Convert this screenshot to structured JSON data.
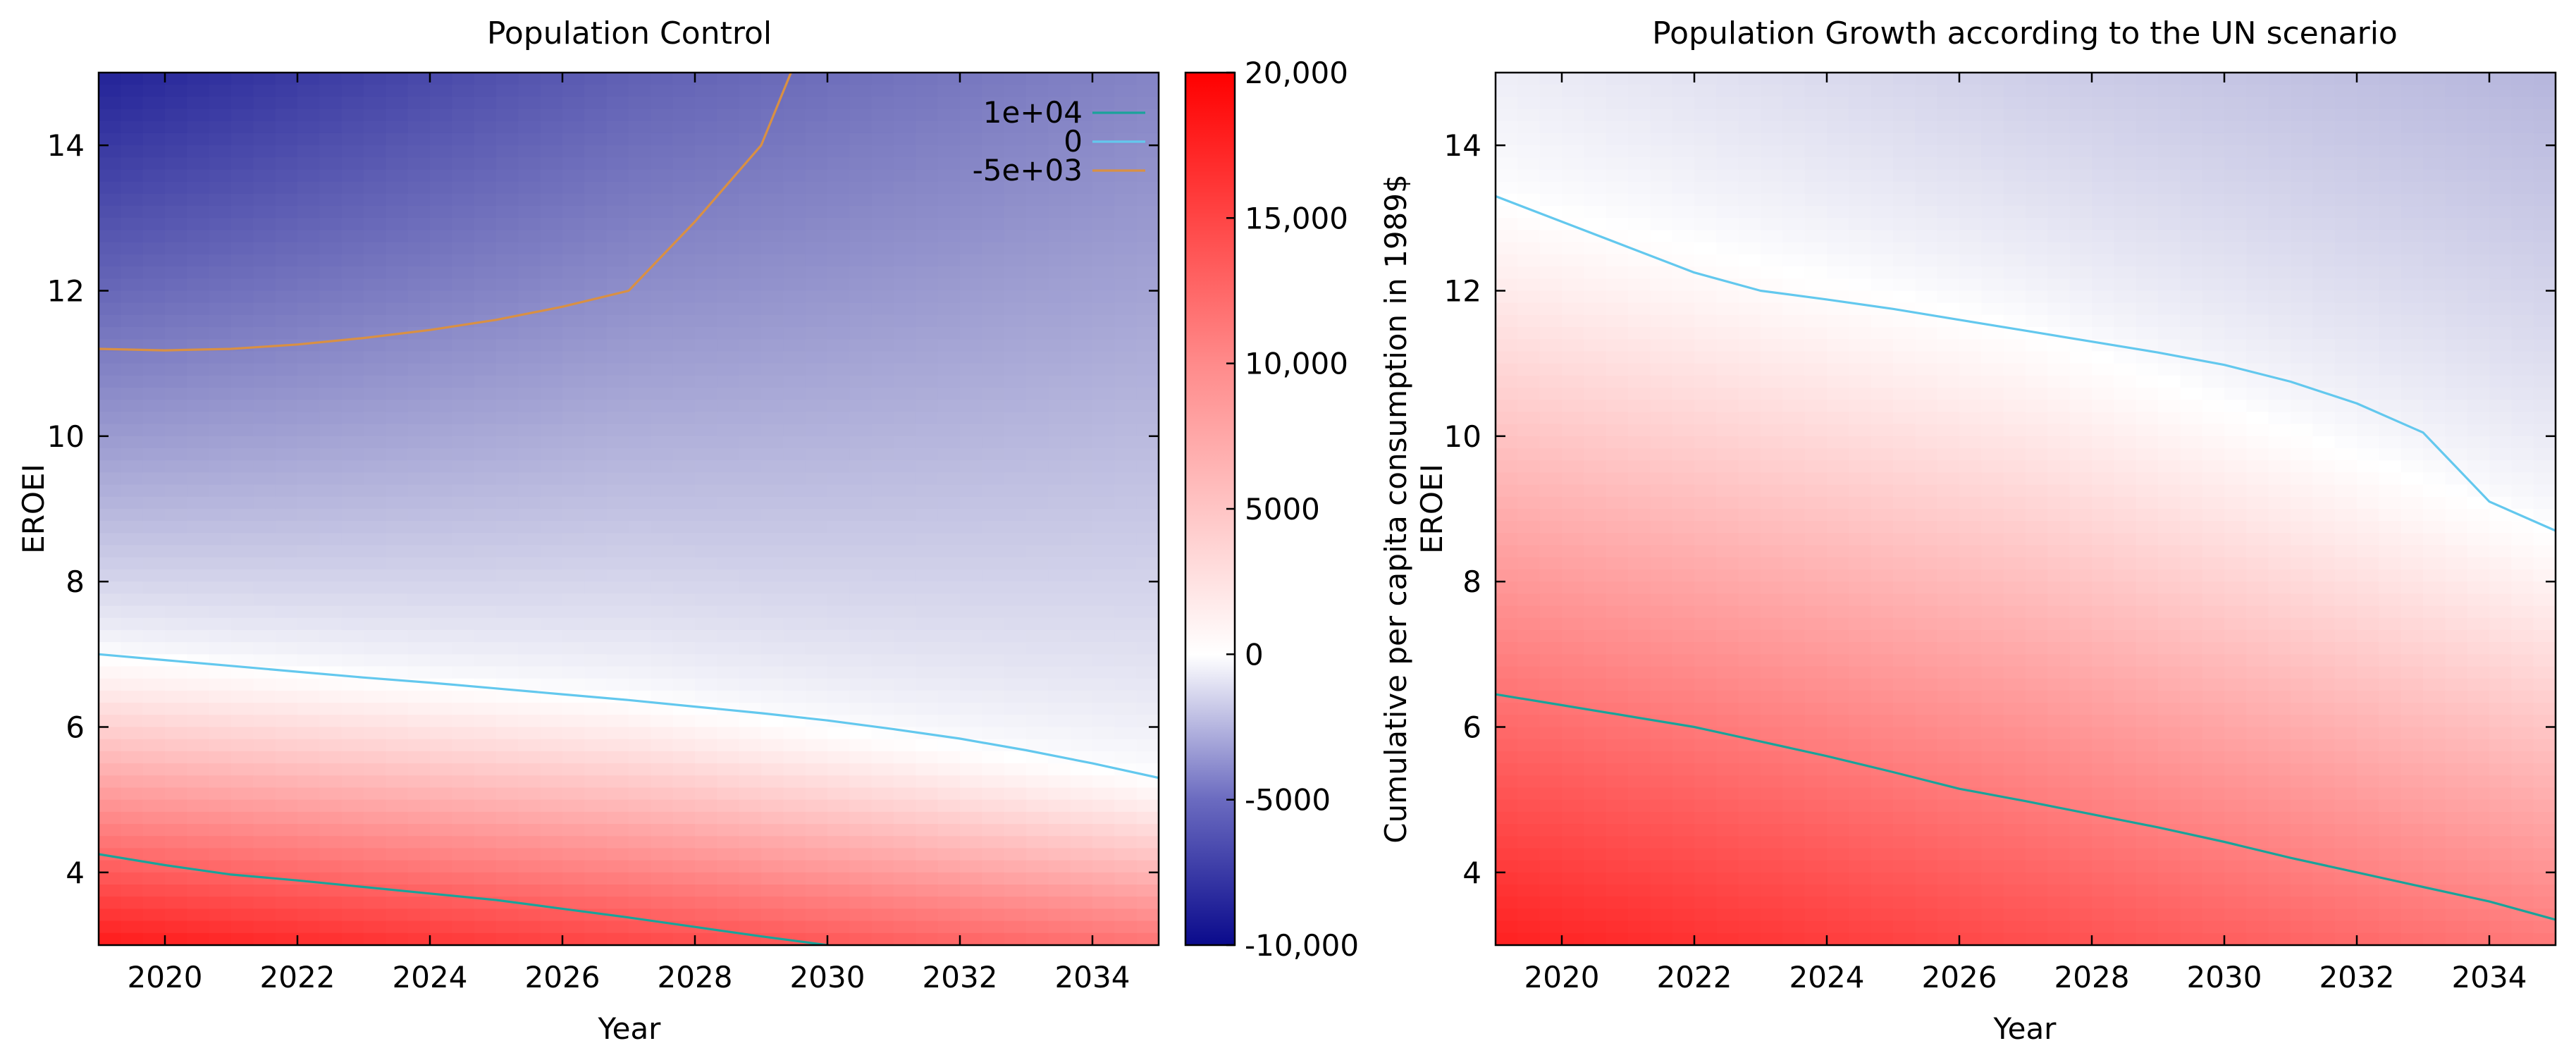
{
  "chart_data": [
    {
      "type": "heatmap",
      "title": "Population Control",
      "xlabel": "Year",
      "ylabel": "EROEI",
      "xlim": [
        2019,
        2035
      ],
      "ylim": [
        3,
        15
      ],
      "xticks": [
        2020,
        2022,
        2024,
        2026,
        2028,
        2030,
        2032,
        2034
      ],
      "xtick_labels": [
        "2020",
        "2022",
        "2024",
        "2026",
        "2028",
        "2030",
        "2032",
        "2034"
      ],
      "yticks": [
        4,
        6,
        8,
        10,
        12,
        14
      ],
      "ytick_labels": [
        "4",
        "6",
        "8",
        "10",
        "12",
        "14"
      ],
      "field": {
        "description": "Cumulative per capita consumption in 1989$ vs Year and EROEI",
        "anchors": [
          {
            "year": 2019,
            "zero_eroei": 7.0,
            "sw_value": 18000,
            "nw_value": -9000
          },
          {
            "year": 2027,
            "zero_eroei": 6.4,
            "sw_value": 14500,
            "nw_value": -6500
          },
          {
            "year": 2035,
            "zero_eroei": 5.3,
            "sw_value": 11000,
            "nw_value": -5000
          }
        ]
      },
      "legend": {
        "location": "top-right",
        "entries": [
          {
            "label": "1e+04",
            "level": 10000,
            "color": "#1aa39a"
          },
          {
            "label": "0",
            "level": 0,
            "color": "#63c8ee"
          },
          {
            "label": "-5e+03",
            "level": -5000,
            "color": "#d99043"
          }
        ]
      },
      "contours": [
        {
          "level": 10000,
          "color": "#1aa39a",
          "points": [
            [
              2019,
              4.25
            ],
            [
              2020,
              4.1
            ],
            [
              2021,
              3.97
            ],
            [
              2022,
              3.89
            ],
            [
              2023,
              3.8
            ],
            [
              2024,
              3.71
            ],
            [
              2025,
              3.62
            ],
            [
              2026,
              3.5
            ],
            [
              2027,
              3.38
            ],
            [
              2028,
              3.25
            ],
            [
              2029,
              3.12
            ],
            [
              2030,
              3.0
            ]
          ]
        },
        {
          "level": 0,
          "color": "#63c8ee",
          "points": [
            [
              2019,
              7.0
            ],
            [
              2020,
              6.92
            ],
            [
              2021,
              6.84
            ],
            [
              2022,
              6.76
            ],
            [
              2023,
              6.68
            ],
            [
              2024,
              6.61
            ],
            [
              2025,
              6.53
            ],
            [
              2026,
              6.45
            ],
            [
              2027,
              6.37
            ],
            [
              2028,
              6.28
            ],
            [
              2029,
              6.19
            ],
            [
              2030,
              6.09
            ],
            [
              2031,
              5.97
            ],
            [
              2032,
              5.84
            ],
            [
              2033,
              5.68
            ],
            [
              2034,
              5.5
            ],
            [
              2035,
              5.3
            ]
          ]
        },
        {
          "level": -5000,
          "color": "#d99043",
          "points": [
            [
              2019,
              11.2
            ],
            [
              2020,
              11.18
            ],
            [
              2021,
              11.2
            ],
            [
              2022,
              11.26
            ],
            [
              2023,
              11.35
            ],
            [
              2024,
              11.46
            ],
            [
              2025,
              11.6
            ],
            [
              2026,
              11.78
            ],
            [
              2027,
              12.0
            ],
            [
              2028,
              12.95
            ],
            [
              2029,
              14.0
            ],
            [
              2029.45,
              15.0
            ]
          ]
        }
      ]
    },
    {
      "type": "heatmap",
      "title": "Population Growth according to the UN scenario",
      "xlabel": "Year",
      "ylabel": "EROEI",
      "xlim": [
        2019,
        2035
      ],
      "ylim": [
        3,
        15
      ],
      "xticks": [
        2020,
        2022,
        2024,
        2026,
        2028,
        2030,
        2032,
        2034
      ],
      "xtick_labels": [
        "2020",
        "2022",
        "2024",
        "2026",
        "2028",
        "2030",
        "2032",
        "2034"
      ],
      "yticks": [
        4,
        6,
        8,
        10,
        12,
        14
      ],
      "ytick_labels": [
        "4",
        "6",
        "8",
        "10",
        "12",
        "14"
      ],
      "field": {
        "description": "Cumulative per capita consumption in 1989$ vs Year and EROEI",
        "anchors": [
          {
            "year": 2019,
            "zero_eroei": 13.3,
            "sw_value": 17500,
            "nw_value": -700
          },
          {
            "year": 2027,
            "zero_eroei": 11.5,
            "sw_value": 14000,
            "nw_value": -2000
          },
          {
            "year": 2035,
            "zero_eroei": 8.7,
            "sw_value": 10500,
            "nw_value": -3000
          }
        ]
      },
      "contours": [
        {
          "level": 10000,
          "color": "#1aa39a",
          "points": [
            [
              2019,
              6.45
            ],
            [
              2020,
              6.3
            ],
            [
              2021,
              6.15
            ],
            [
              2022,
              6.0
            ],
            [
              2023,
              5.8
            ],
            [
              2024,
              5.6
            ],
            [
              2025,
              5.38
            ],
            [
              2026,
              5.15
            ],
            [
              2027,
              4.98
            ],
            [
              2028,
              4.8
            ],
            [
              2029,
              4.62
            ],
            [
              2030,
              4.42
            ],
            [
              2031,
              4.2
            ],
            [
              2032,
              4.0
            ],
            [
              2033,
              3.8
            ],
            [
              2034,
              3.6
            ],
            [
              2035,
              3.35
            ]
          ]
        },
        {
          "level": 0,
          "color": "#63c8ee",
          "points": [
            [
              2019,
              13.3
            ],
            [
              2020,
              12.95
            ],
            [
              2021,
              12.6
            ],
            [
              2022,
              12.25
            ],
            [
              2023,
              12.0
            ],
            [
              2024,
              11.88
            ],
            [
              2025,
              11.75
            ],
            [
              2026,
              11.6
            ],
            [
              2027,
              11.45
            ],
            [
              2028,
              11.3
            ],
            [
              2029,
              11.15
            ],
            [
              2030,
              10.98
            ],
            [
              2031,
              10.75
            ],
            [
              2032,
              10.45
            ],
            [
              2033,
              10.05
            ],
            [
              2034,
              9.1
            ],
            [
              2035,
              8.7
            ]
          ]
        }
      ]
    },
    {
      "type": "colorbar",
      "label": "Cumulative per capita consumption in 1989$",
      "range": [
        -10000,
        20000
      ],
      "ticks": [
        20000,
        15000,
        10000,
        5000,
        0,
        -5000,
        -10000
      ],
      "tick_labels": [
        "20,000",
        "15,000",
        "10,000",
        "5000",
        "0",
        "-5000",
        "-10,000"
      ],
      "colors": {
        "max": "#ff0000",
        "mid": "#ffffff",
        "min": "#0a0a8c"
      }
    }
  ]
}
